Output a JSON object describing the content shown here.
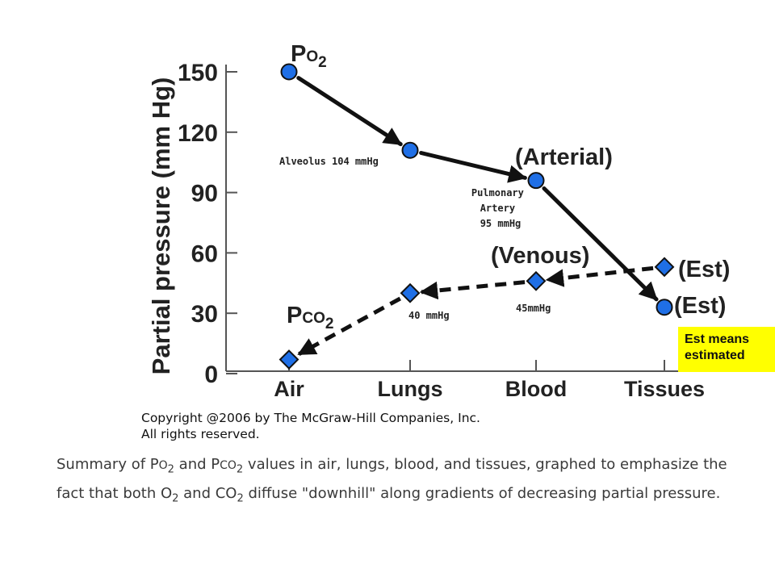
{
  "chart_data": {
    "type": "line",
    "ylabel": "Partial pressure (mm Hg)",
    "yticks": [
      "150",
      "120",
      "90",
      "60",
      "30",
      "0"
    ],
    "ytick_values": [
      150,
      120,
      90,
      60,
      30,
      0
    ],
    "ylim": [
      0,
      150
    ],
    "categories": [
      "Air",
      "Lungs",
      "Blood",
      "Tissues"
    ],
    "series": [
      {
        "key": "po2",
        "label_main": "P",
        "label_small": "O",
        "label_sub": "2",
        "line": "solid",
        "marker": "circle",
        "color": "#1f6fe6",
        "points": [
          {
            "x": "Air",
            "y": 150
          },
          {
            "x": "Lungs",
            "y": 111
          },
          {
            "x": "Blood",
            "y": 96,
            "label": "(Arterial)"
          },
          {
            "x": "Tissues",
            "y": 33,
            "label": "(Est)"
          }
        ]
      },
      {
        "key": "pco2",
        "label_main": "P",
        "label_small": "CO",
        "label_sub": "2",
        "line": "dashed",
        "marker": "diamond",
        "color": "#1f6fe6",
        "points": [
          {
            "x": "Tissues",
            "y": 53,
            "label": "(Est)"
          },
          {
            "x": "Blood",
            "y": 46,
            "label": "(Venous)"
          },
          {
            "x": "Lungs",
            "y": 40
          },
          {
            "x": "Air",
            "y": 7
          }
        ]
      }
    ],
    "annotations": [
      {
        "text": "Alveolus 104 mmHg"
      },
      {
        "lines": [
          "Pulmonary",
          "Artery",
          "95 mmHg"
        ]
      },
      {
        "text": "40 mmHg"
      },
      {
        "text": "45mmHg"
      }
    ]
  },
  "copyright": [
    "Copyright @2006 by The McGraw-Hill Companies, Inc.",
    "All rights reserved."
  ],
  "caption": {
    "p1": "Summary of ",
    "po_main": "P",
    "po_small": "O",
    "po_sub": "2",
    "p2": " and ",
    "pco_main": "P",
    "pco_small": "CO",
    "pco_sub": "2",
    "p3": " values in air, lungs, blood, and tissues, graphed to emphasize the fact that both ",
    "o_main": "O",
    "o_sub": "2",
    "p4": " and ",
    "co_main": "CO",
    "co_sub": "2",
    "p5": " diffuse \"downhill\" along gradients of decreasing partial pressure."
  },
  "est_note": [
    "Est means",
    "estimated"
  ]
}
